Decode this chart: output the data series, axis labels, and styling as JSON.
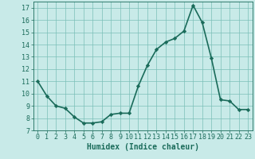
{
  "x_values": [
    0,
    1,
    2,
    3,
    4,
    5,
    6,
    7,
    8,
    9,
    10,
    11,
    12,
    13,
    14,
    15,
    16,
    17,
    18,
    19,
    20,
    21,
    22,
    23
  ],
  "y_values": [
    11.0,
    9.8,
    9.0,
    8.8,
    8.1,
    7.6,
    7.6,
    7.7,
    8.3,
    8.4,
    8.4,
    10.6,
    12.3,
    13.6,
    14.2,
    14.5,
    15.1,
    17.2,
    15.8,
    12.9,
    9.5,
    9.4,
    8.7,
    8.7
  ],
  "line_color": "#1a6b5a",
  "marker": "D",
  "marker_size": 2.2,
  "bg_color": "#c8eae8",
  "grid_color": "#7bbfb8",
  "xlabel": "Humidex (Indice chaleur)",
  "xlim": [
    -0.5,
    23.5
  ],
  "ylim": [
    7,
    17.5
  ],
  "yticks": [
    7,
    8,
    9,
    10,
    11,
    12,
    13,
    14,
    15,
    16,
    17
  ],
  "xticks": [
    0,
    1,
    2,
    3,
    4,
    5,
    6,
    7,
    8,
    9,
    10,
    11,
    12,
    13,
    14,
    15,
    16,
    17,
    18,
    19,
    20,
    21,
    22,
    23
  ],
  "tick_color": "#1a6b5a",
  "axis_color": "#1a6b5a",
  "font_color": "#1a6b5a",
  "xlabel_fontsize": 7,
  "tick_fontsize": 6,
  "linewidth": 1.2
}
